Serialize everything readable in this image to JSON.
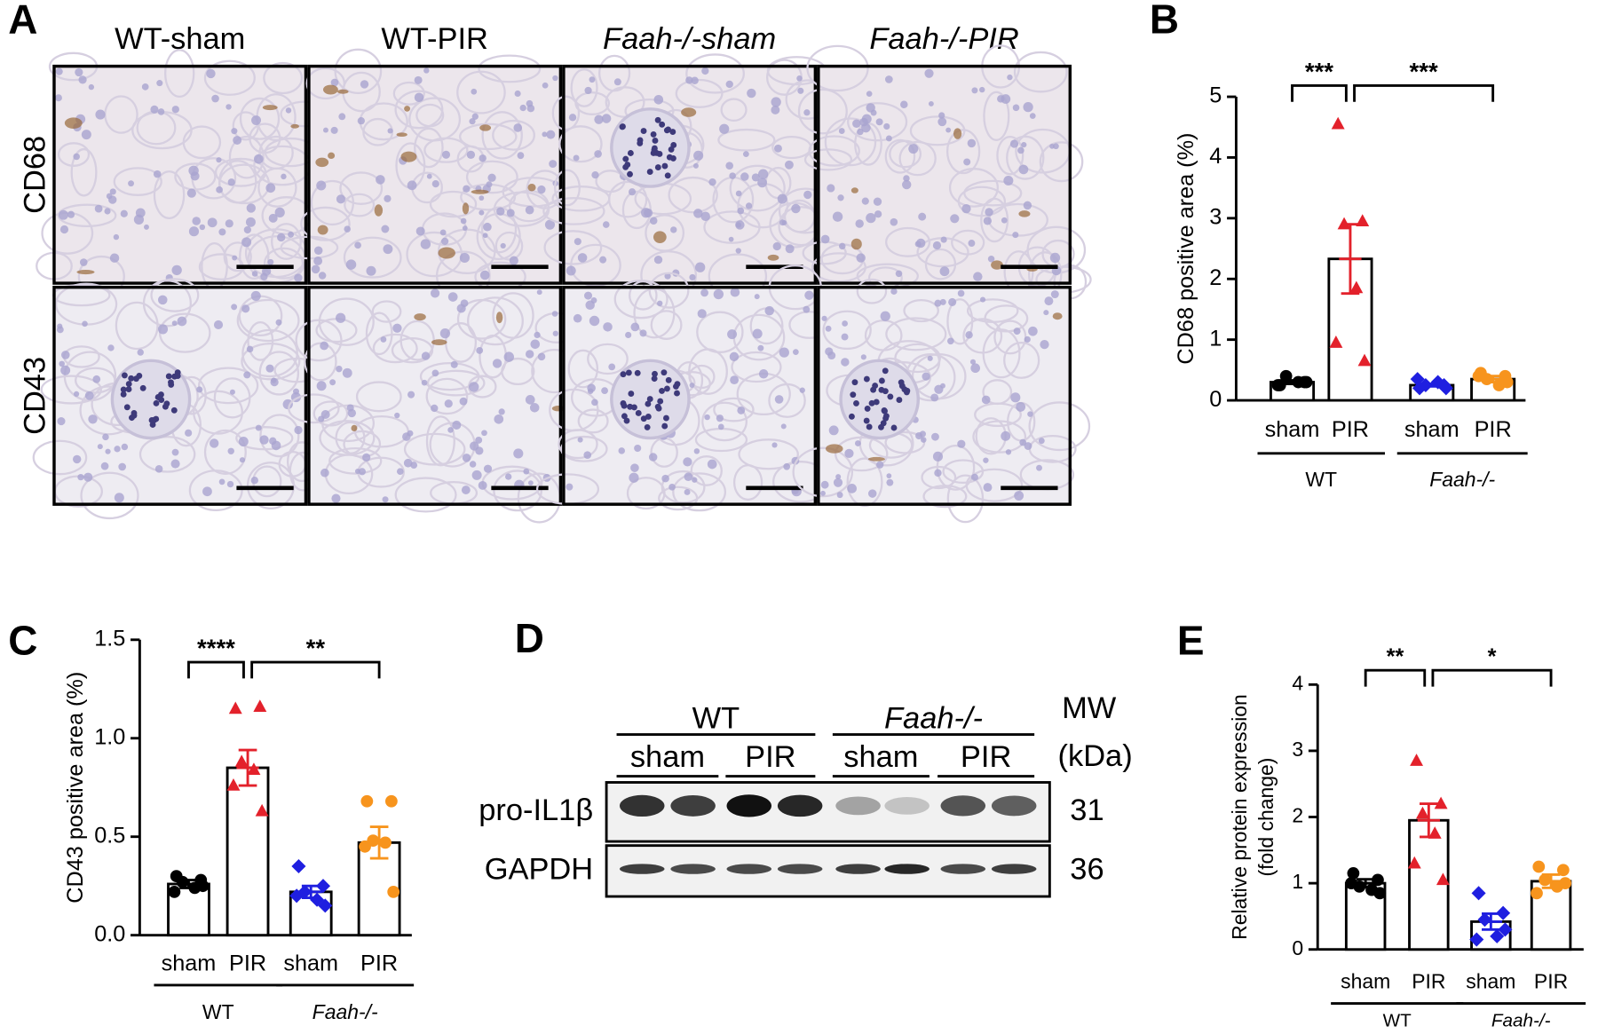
{
  "panel_a": {
    "panel": "A",
    "columns": [
      "WT-sham",
      "WT-PIR",
      "Faah-/-sham",
      "Faah-/-PIR"
    ],
    "rows": [
      "CD68",
      "CD43"
    ]
  },
  "panel_d": {
    "panel": "D",
    "groups": [
      "WT",
      "Faah-/-"
    ],
    "lanes": [
      "sham",
      "PIR",
      "sham",
      "PIR"
    ],
    "mw_header": [
      "MW",
      "(kDa)"
    ],
    "rows": [
      {
        "label": "pro-IL1β",
        "mw": 31
      },
      {
        "label": "GAPDH",
        "mw": 36
      }
    ]
  },
  "chart_data": [
    {
      "type": "bar",
      "panel": "B",
      "ylabel": [
        "CD68 positive area (%)"
      ],
      "categories": [
        "sham",
        "PIR",
        "sham",
        "PIR"
      ],
      "groups": [
        {
          "label": "WT",
          "categories": [
            0,
            1
          ]
        },
        {
          "label": "Faah-/-",
          "categories": [
            2,
            3
          ],
          "style": "italic"
        }
      ],
      "colors": [
        "#000000",
        "#e3212b",
        "#1f1fe0",
        "#f7941d"
      ],
      "markers": [
        "circle",
        "triangle",
        "diamond",
        "circle"
      ],
      "values": [
        0.3,
        2.33,
        0.25,
        0.35
      ],
      "errors": [
        0.03,
        0.57,
        0.02,
        0.05
      ],
      "points": [
        [
          0.25,
          0.3,
          0.4,
          0.3,
          0.25,
          0.3
        ],
        [
          4.55,
          2.95,
          2.9,
          1.85,
          0.95,
          0.65
        ],
        [
          0.2,
          0.25,
          0.25,
          0.3,
          0.35,
          0.2
        ],
        [
          0.45,
          0.4,
          0.35,
          0.25,
          0.4,
          0.3
        ]
      ],
      "ylim": [
        0,
        5
      ],
      "yticks": [
        0,
        1,
        2,
        3,
        4,
        5
      ],
      "significance": [
        {
          "label": "***",
          "categories": [
            0,
            1
          ]
        },
        {
          "label": "***",
          "categories": [
            1,
            3
          ]
        }
      ]
    },
    {
      "type": "bar",
      "panel": "C",
      "ylabel": [
        "CD43 positive area (%)"
      ],
      "categories": [
        "sham",
        "PIR",
        "sham",
        "PIR"
      ],
      "groups": [
        {
          "label": "WT",
          "categories": [
            0,
            1
          ]
        },
        {
          "label": "Faah-/-",
          "categories": [
            2,
            3
          ],
          "style": "italic"
        }
      ],
      "colors": [
        "#000000",
        "#e3212b",
        "#1f1fe0",
        "#f7941d"
      ],
      "markers": [
        "circle",
        "triangle",
        "diamond",
        "circle"
      ],
      "values": [
        0.26,
        0.85,
        0.22,
        0.47
      ],
      "errors": [
        0.02,
        0.09,
        0.03,
        0.08
      ],
      "points": [
        [
          0.3,
          0.28,
          0.27,
          0.24,
          0.22,
          0.25
        ],
        [
          1.15,
          1.16,
          0.88,
          0.84,
          0.76,
          0.63
        ],
        [
          0.35,
          0.25,
          0.22,
          0.18,
          0.2,
          0.15
        ],
        [
          0.68,
          0.68,
          0.48,
          0.47,
          0.45,
          0.22
        ]
      ],
      "ylim": [
        0,
        1.5
      ],
      "yticks": [
        {
          "value": 0,
          "label": "0.0"
        },
        0.5,
        {
          "value": 1,
          "label": "1.0"
        },
        1.5
      ],
      "significance": [
        {
          "label": "****",
          "categories": [
            0,
            1
          ]
        },
        {
          "label": "**",
          "categories": [
            1,
            3
          ]
        }
      ]
    },
    {
      "type": "bar",
      "panel": "E",
      "ylabel": [
        "Relative protein expression",
        "(fold change)"
      ],
      "categories": [
        "sham",
        "PIR",
        "sham",
        "PIR"
      ],
      "groups": [
        {
          "label": "WT",
          "categories": [
            0,
            1
          ]
        },
        {
          "label": "Faah-/-",
          "categories": [
            2,
            3
          ],
          "style": "italic"
        }
      ],
      "colors": [
        "#000000",
        "#e3212b",
        "#1f1fe0",
        "#f7941d"
      ],
      "markers": [
        "circle",
        "triangle",
        "diamond",
        "circle"
      ],
      "values": [
        1.0,
        1.95,
        0.42,
        1.03
      ],
      "errors": [
        0.06,
        0.25,
        0.12,
        0.1
      ],
      "points": [
        [
          1.15,
          1.05,
          0.95,
          0.9,
          1.0,
          0.85
        ],
        [
          2.85,
          2.2,
          2.05,
          1.75,
          1.3,
          1.05
        ],
        [
          0.85,
          0.55,
          0.45,
          0.2,
          0.15,
          0.3
        ],
        [
          1.25,
          1.2,
          1.05,
          0.95,
          0.85,
          1.0
        ]
      ],
      "ylim": [
        0,
        4
      ],
      "yticks": [
        0,
        1,
        2,
        3,
        4
      ],
      "significance": [
        {
          "label": "**",
          "categories": [
            0,
            1
          ]
        },
        {
          "label": "*",
          "categories": [
            1,
            3
          ]
        }
      ]
    }
  ]
}
